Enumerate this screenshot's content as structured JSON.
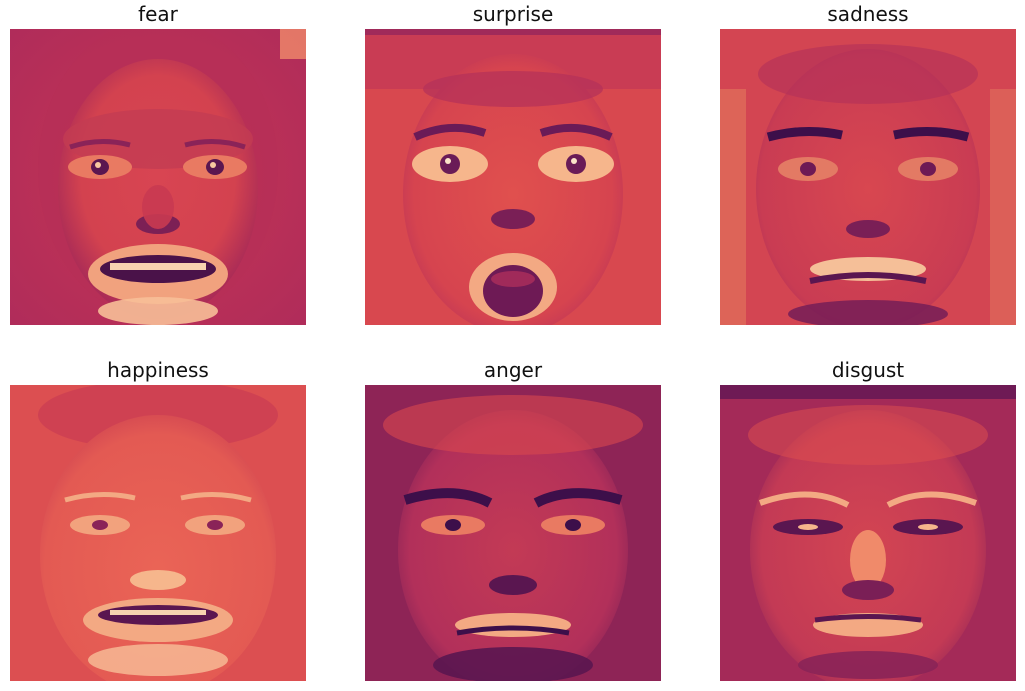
{
  "figure": {
    "panels": [
      {
        "label": "fear"
      },
      {
        "label": "surprise"
      },
      {
        "label": "sadness"
      },
      {
        "label": "happiness"
      },
      {
        "label": "anger"
      },
      {
        "label": "disgust"
      }
    ],
    "colormap": [
      "#3d0f4a",
      "#7a1c5c",
      "#b82a58",
      "#e2484f",
      "#f17c5c",
      "#f7b78e",
      "#fbe3c8"
    ]
  }
}
